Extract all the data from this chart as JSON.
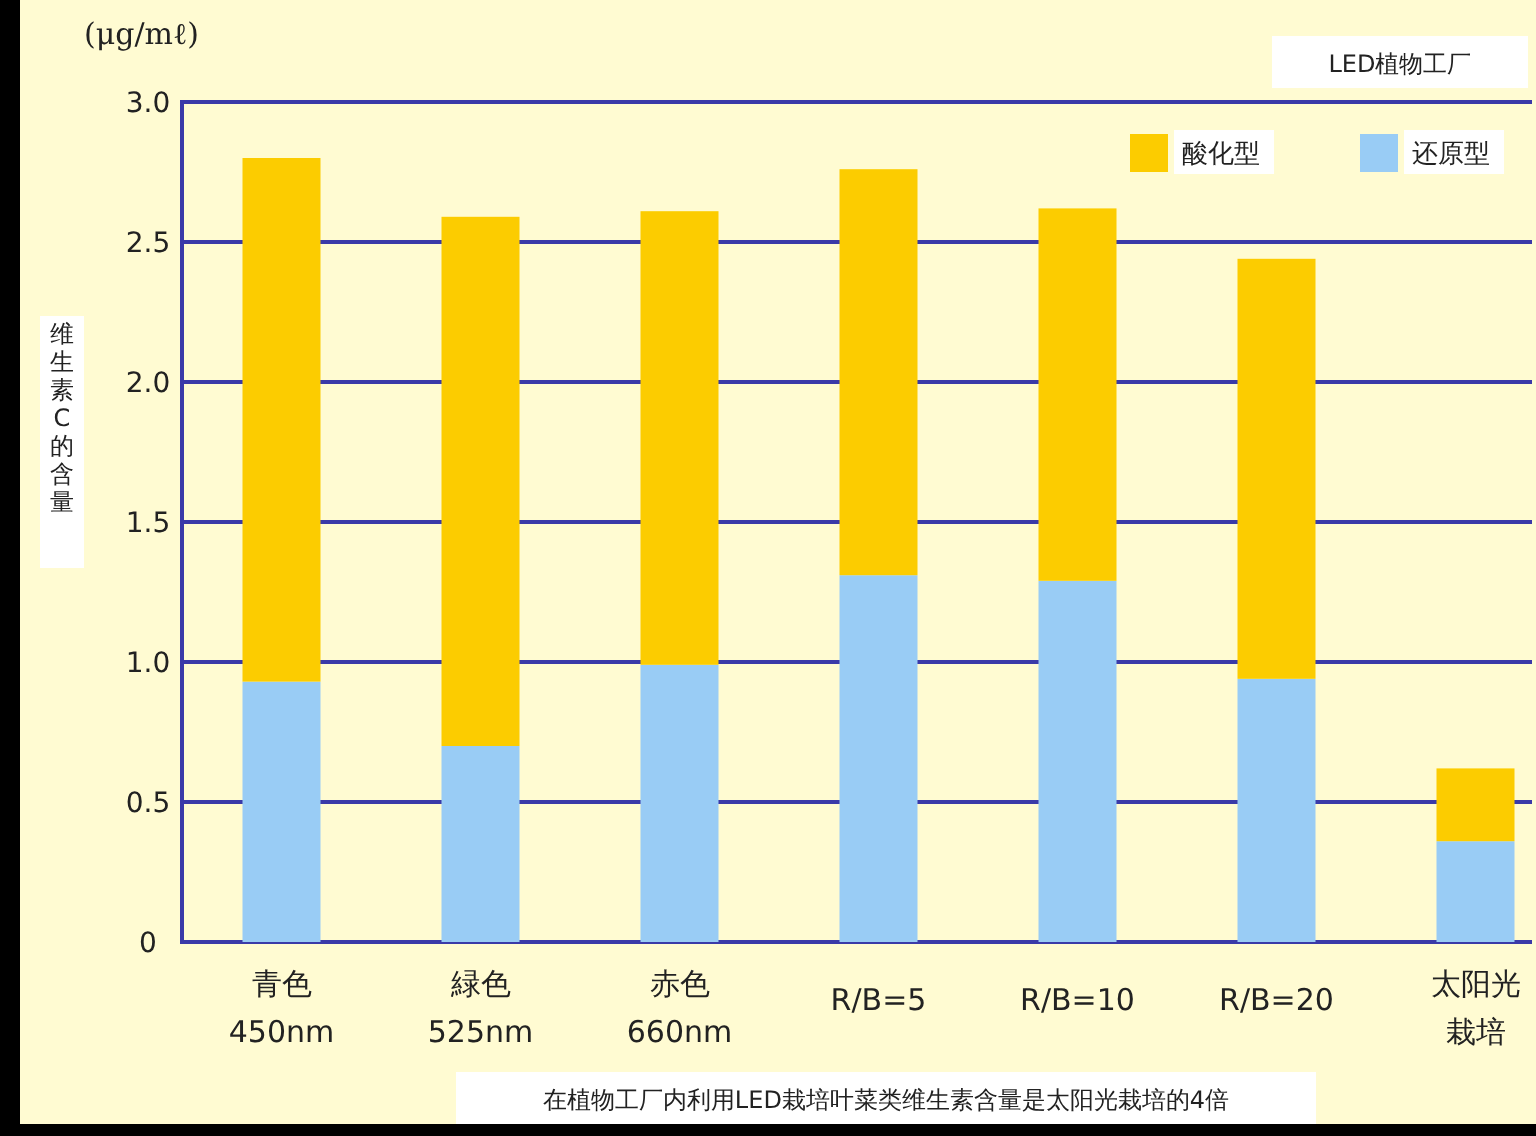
{
  "chart_data": {
    "type": "bar",
    "title": "LED植物工厂",
    "ylabel": "维生素C的含量",
    "annotations": [
      "(μg/mℓ)",
      "在植物工厂内利用LED栽培叶菜类维生素含量是太阳光栽培的4倍"
    ],
    "categories": [
      "青色 450nm",
      "緑色 525nm",
      "赤色 660nm",
      "R/B=5",
      "R/B=10",
      "R/B=20",
      "太阳光栽培"
    ],
    "stacked": true,
    "series": [
      {
        "name": "还原型",
        "color": "#99ccf5",
        "values": [
          0.93,
          0.7,
          0.99,
          1.31,
          1.29,
          0.94,
          0.36
        ]
      },
      {
        "name": "酸化型",
        "color": "#fccc00",
        "values": [
          1.87,
          1.89,
          1.62,
          1.45,
          1.33,
          1.5,
          0.26
        ]
      }
    ],
    "ylim": [
      0,
      3.0
    ],
    "yticks": [
      {
        "value": 0,
        "label": "0"
      },
      {
        "value": 0.5,
        "label": "0.5"
      },
      {
        "value": 1.0,
        "label": "1.0"
      },
      {
        "value": 1.5,
        "label": "1.5"
      },
      {
        "value": 2.0,
        "label": "2.0"
      },
      {
        "value": 2.5,
        "label": "2.5"
      },
      {
        "value": 3.0,
        "label": "3.0"
      }
    ],
    "grid": "y",
    "legend": "top right"
  }
}
